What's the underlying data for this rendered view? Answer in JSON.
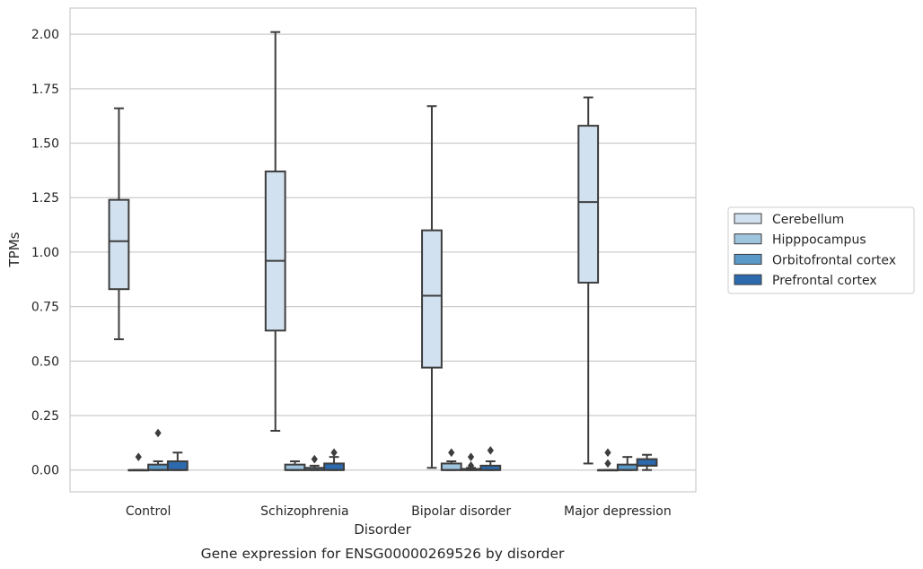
{
  "caption": "Gene expression for ENSG00000269526 by disorder",
  "chart_data": {
    "type": "box",
    "xlabel": "Disorder",
    "ylabel": "TPMs",
    "ylim": [
      -0.1,
      2.12
    ],
    "yticks": [
      0.0,
      0.25,
      0.5,
      0.75,
      1.0,
      1.25,
      1.5,
      1.75,
      2.0
    ],
    "ytick_labels": [
      "0.00",
      "0.25",
      "0.50",
      "0.75",
      "1.00",
      "1.25",
      "1.50",
      "1.75",
      "2.00"
    ],
    "grid": "horizontal",
    "legend_position": "right",
    "categories": [
      "Control",
      "Schizophrenia",
      "Bipolar disorder",
      "Major depression"
    ],
    "series": [
      {
        "name": "Cerebellum",
        "color": "#d1e1f0",
        "boxes": [
          {
            "whislo": 0.6,
            "q1": 0.83,
            "med": 1.05,
            "q3": 1.24,
            "whishi": 1.66,
            "fliers": []
          },
          {
            "whislo": 0.18,
            "q1": 0.64,
            "med": 0.96,
            "q3": 1.37,
            "whishi": 2.01,
            "fliers": []
          },
          {
            "whislo": 0.01,
            "q1": 0.47,
            "med": 0.8,
            "q3": 1.1,
            "whishi": 1.67,
            "fliers": []
          },
          {
            "whislo": 0.03,
            "q1": 0.86,
            "med": 1.23,
            "q3": 1.58,
            "whishi": 1.71,
            "fliers": []
          }
        ]
      },
      {
        "name": "Hipppocampus",
        "color": "#9ec4de",
        "boxes": [
          {
            "whislo": 0.0,
            "q1": 0.0,
            "med": 0.0,
            "q3": 0.0,
            "whishi": 0.0,
            "fliers": [
              0.06
            ]
          },
          {
            "whislo": 0.0,
            "q1": 0.0,
            "med": 0.0,
            "q3": 0.025,
            "whishi": 0.04,
            "fliers": []
          },
          {
            "whislo": 0.0,
            "q1": 0.0,
            "med": 0.0,
            "q3": 0.03,
            "whishi": 0.04,
            "fliers": [
              0.08
            ]
          },
          {
            "whislo": 0.0,
            "q1": 0.0,
            "med": 0.0,
            "q3": 0.0,
            "whishi": 0.0,
            "fliers": [
              0.03,
              0.08
            ]
          }
        ]
      },
      {
        "name": "Orbitofrontal cortex",
        "color": "#5a98c7",
        "boxes": [
          {
            "whislo": 0.0,
            "q1": 0.0,
            "med": 0.0,
            "q3": 0.025,
            "whishi": 0.04,
            "fliers": [
              0.17
            ]
          },
          {
            "whislo": 0.0,
            "q1": 0.0,
            "med": 0.0,
            "q3": 0.01,
            "whishi": 0.02,
            "fliers": [
              0.05
            ]
          },
          {
            "whislo": 0.0,
            "q1": 0.0,
            "med": 0.0,
            "q3": 0.005,
            "whishi": 0.01,
            "fliers": [
              0.02,
              0.06
            ]
          },
          {
            "whislo": 0.0,
            "q1": 0.0,
            "med": 0.0,
            "q3": 0.025,
            "whishi": 0.06,
            "fliers": []
          }
        ]
      },
      {
        "name": "Prefrontal cortex",
        "color": "#2c6aad",
        "boxes": [
          {
            "whislo": 0.0,
            "q1": 0.0,
            "med": 0.0,
            "q3": 0.04,
            "whishi": 0.08,
            "fliers": []
          },
          {
            "whislo": 0.0,
            "q1": 0.0,
            "med": 0.0,
            "q3": 0.03,
            "whishi": 0.06,
            "fliers": [
              0.08
            ]
          },
          {
            "whislo": 0.0,
            "q1": 0.0,
            "med": 0.0,
            "q3": 0.02,
            "whishi": 0.04,
            "fliers": [
              0.09
            ]
          },
          {
            "whislo": 0.0,
            "q1": 0.02,
            "med": 0.02,
            "q3": 0.05,
            "whishi": 0.07,
            "fliers": []
          }
        ]
      }
    ]
  }
}
